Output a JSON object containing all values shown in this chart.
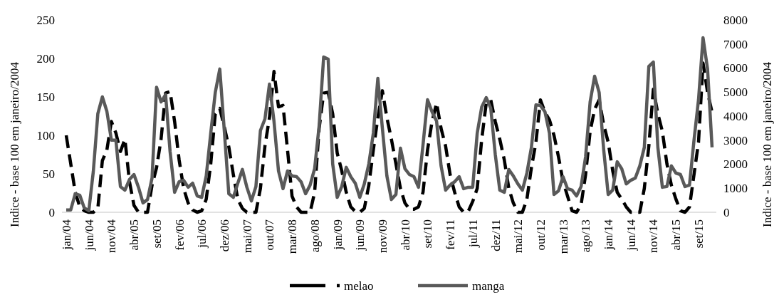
{
  "chart_data": {
    "type": "line",
    "ylabel": "Indice - base 100 em janeiro/2004",
    "y2label": "Indice - base 100 em janeiro/2004",
    "categories": [
      "jan/04",
      null,
      null,
      null,
      null,
      "jun/04",
      null,
      null,
      null,
      null,
      "nov/04",
      null,
      null,
      null,
      null,
      "abr/05",
      null,
      null,
      null,
      null,
      "set/05",
      null,
      null,
      null,
      null,
      "fev/06",
      null,
      null,
      null,
      null,
      "jul/06",
      null,
      null,
      null,
      null,
      "dez/06",
      null,
      null,
      null,
      null,
      "mai/07",
      null,
      null,
      null,
      null,
      "out/07",
      null,
      null,
      null,
      null,
      "mar/08",
      null,
      null,
      null,
      null,
      "ago/08",
      null,
      null,
      null,
      null,
      "jan/09",
      null,
      null,
      null,
      null,
      "jun/09",
      null,
      null,
      null,
      null,
      "nov/09",
      null,
      null,
      null,
      null,
      "abr/10",
      null,
      null,
      null,
      null,
      "set/10",
      null,
      null,
      null,
      null,
      "fev/11",
      null,
      null,
      null,
      null,
      "jul/11",
      null,
      null,
      null,
      null,
      "dez/11",
      null,
      null,
      null,
      null,
      "mai/12",
      null,
      null,
      null,
      null,
      "out/12",
      null,
      null,
      null,
      null,
      "mar/13",
      null,
      null,
      null,
      null,
      "ago/13",
      null,
      null,
      null,
      null,
      "jan/14",
      null,
      null,
      null,
      null,
      "jun/14",
      null,
      null,
      null,
      null,
      "nov/14",
      null,
      null,
      null,
      null,
      "abr/15",
      null,
      null,
      null,
      null,
      "set/15",
      null,
      null,
      null
    ],
    "series": [
      {
        "name": "melao",
        "color": "#000000",
        "line_style": "dashed",
        "values": [
          100,
          63,
          26,
          7,
          2,
          0,
          0,
          5,
          67,
          81,
          118,
          103,
          79,
          95,
          40,
          9,
          0,
          0,
          0,
          35,
          58,
          95,
          155,
          157,
          118,
          68,
          31,
          12,
          3,
          0,
          2,
          17,
          63,
          128,
          135,
          111,
          85,
          49,
          17,
          5,
          0,
          0,
          0,
          31,
          86,
          123,
          183,
          137,
          139,
          81,
          21,
          7,
          0,
          0,
          0,
          26,
          109,
          155,
          156,
          128,
          77,
          54,
          26,
          7,
          1,
          0,
          5,
          35,
          81,
          123,
          158,
          123,
          95,
          63,
          31,
          12,
          4,
          4,
          7,
          26,
          81,
          118,
          142,
          109,
          86,
          49,
          26,
          7,
          0,
          1,
          14,
          31,
          95,
          142,
          146,
          118,
          95,
          68,
          31,
          12,
          0,
          0,
          17,
          58,
          91,
          146,
          130,
          120,
          100,
          72,
          40,
          21,
          2,
          0,
          10,
          49,
          105,
          134,
          146,
          114,
          91,
          54,
          26,
          17,
          7,
          0,
          0,
          0,
          31,
          86,
          160,
          128,
          105,
          63,
          35,
          17,
          2,
          0,
          7,
          49,
          91,
          194,
          156,
          130
        ]
      },
      {
        "name": "manga",
        "color": "#595959",
        "line_style": "solid",
        "axis": "y2",
        "values": [
          100,
          100,
          770,
          710,
          180,
          60,
          1700,
          4100,
          4800,
          4200,
          3000,
          3000,
          1070,
          920,
          1360,
          1570,
          1040,
          390,
          530,
          1420,
          5200,
          4590,
          4890,
          2520,
          830,
          1270,
          1330,
          1040,
          1210,
          680,
          620,
          1510,
          3290,
          4980,
          5960,
          3400,
          770,
          620,
          1210,
          1780,
          1040,
          470,
          1070,
          3400,
          3880,
          5330,
          3790,
          1720,
          980,
          1720,
          1510,
          1480,
          1270,
          770,
          1130,
          1810,
          3590,
          6460,
          6370,
          2010,
          620,
          1070,
          1870,
          1480,
          1210,
          620,
          1180,
          2010,
          3290,
          5570,
          3500,
          1510,
          530,
          740,
          2670,
          1810,
          1570,
          1480,
          1040,
          2810,
          4680,
          4180,
          3790,
          1930,
          920,
          1130,
          1270,
          1480,
          980,
          1040,
          1040,
          3290,
          4380,
          4770,
          4330,
          2400,
          920,
          830,
          1780,
          1510,
          1180,
          920,
          1630,
          2700,
          4470,
          4440,
          4180,
          3290,
          740,
          890,
          1480,
          980,
          920,
          680,
          1070,
          2310,
          4590,
          5660,
          4980,
          2610,
          740,
          920,
          2100,
          1810,
          1180,
          1330,
          1420,
          1930,
          2700,
          6070,
          6250,
          2700,
          1040,
          1070,
          1930,
          1630,
          1570,
          1070,
          1130,
          2990,
          4680,
          7260,
          5960,
          2700
        ]
      }
    ],
    "ylim": [
      0,
      250
    ],
    "yticks": [
      0,
      50,
      100,
      150,
      200,
      250
    ],
    "y2lim": [
      0,
      8000
    ],
    "y2ticks": [
      0,
      1000,
      2000,
      3000,
      4000,
      5000,
      6000,
      7000,
      8000
    ],
    "legend": "bottom",
    "grid": false
  }
}
